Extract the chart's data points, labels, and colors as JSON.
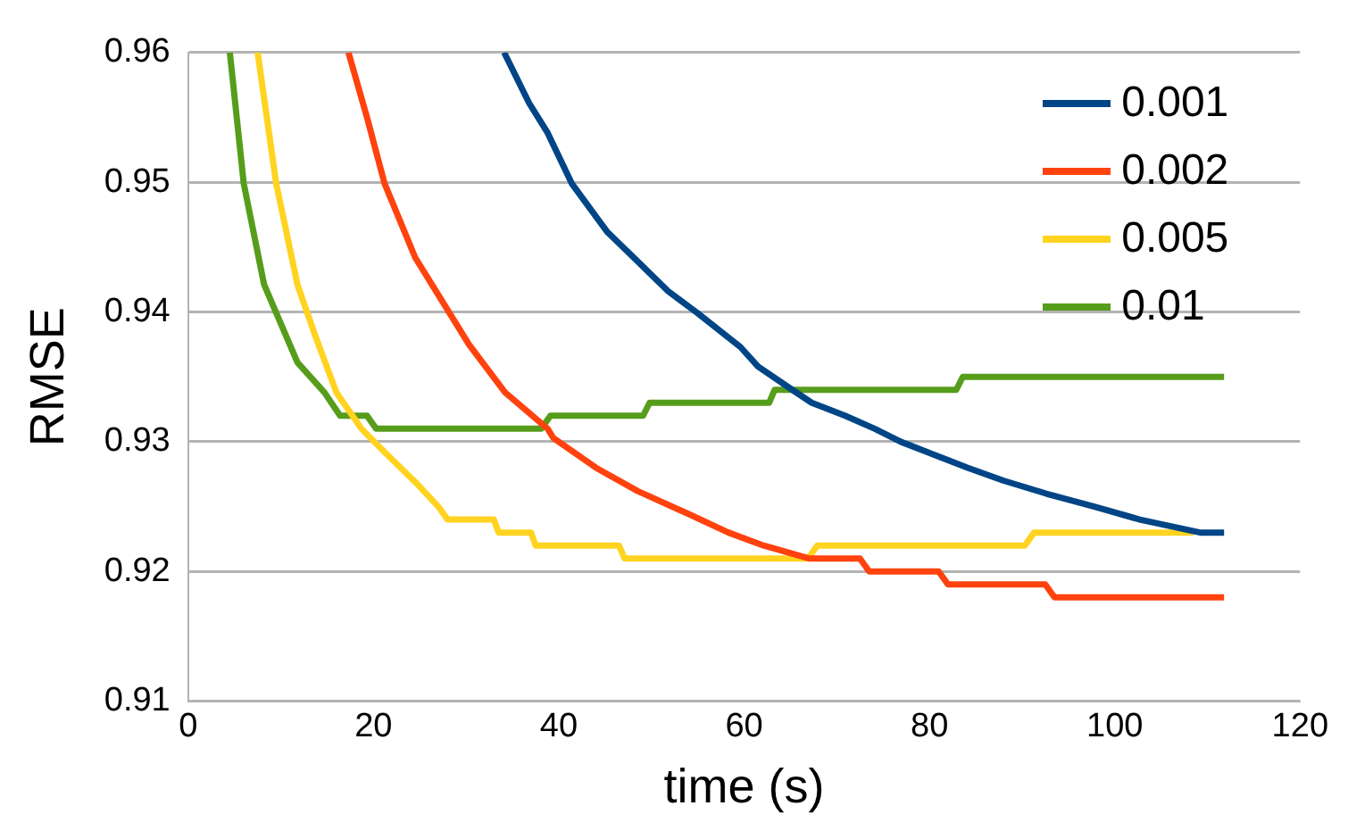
{
  "chart_data": {
    "type": "line",
    "xlabel": "time (s)",
    "ylabel": "RMSE",
    "xlim": [
      0,
      120
    ],
    "xticks": [
      0,
      20,
      40,
      60,
      80,
      100,
      120
    ],
    "ylim": [
      0.91,
      0.96
    ],
    "yticks": [
      0.91,
      0.92,
      0.93,
      0.94,
      0.95,
      0.96
    ],
    "grid": "y",
    "legend": "top right",
    "marker": "none",
    "line_style": "solid",
    "series": [
      {
        "name": "0.001",
        "color": "#004586",
        "x": [
          34.1,
          36.8,
          38.8,
          41.4,
          45.2,
          48.5,
          51.8,
          55,
          59.6,
          61.5,
          65.2,
          67.3,
          70.9,
          74.1,
          76.9,
          80.5,
          84.1,
          88,
          92.6,
          97.8,
          102.7,
          109.2,
          111.8
        ],
        "values": [
          0.96,
          0.9561,
          0.9538,
          0.9499,
          0.9462,
          0.9439,
          0.9416,
          0.9399,
          0.9373,
          0.9358,
          0.934,
          0.933,
          0.932,
          0.931,
          0.93,
          0.929,
          0.928,
          0.927,
          0.926,
          0.925,
          0.924,
          0.923,
          0.923
        ]
      },
      {
        "name": "0.002",
        "color": "#ff420e",
        "x": [
          17.3,
          19.3,
          21.2,
          24.5,
          27.1,
          30.3,
          34.2,
          38.8,
          39.4,
          44,
          48.5,
          54.4,
          58.3,
          62.1,
          67,
          72.5,
          73.5,
          81,
          82,
          92.5,
          93.5,
          111.8
        ],
        "values": [
          0.96,
          0.955,
          0.9499,
          0.9442,
          0.9412,
          0.9375,
          0.9338,
          0.931,
          0.9303,
          0.928,
          0.9262,
          0.9243,
          0.923,
          0.922,
          0.921,
          0.921,
          0.92,
          0.92,
          0.919,
          0.919,
          0.918,
          0.918
        ]
      },
      {
        "name": "0.005",
        "color": "#ffd320",
        "x": [
          7.5,
          9.5,
          11.8,
          13.8,
          16,
          18.7,
          21.2,
          24.5,
          27,
          28,
          33,
          33.5,
          37,
          37.5,
          46.5,
          47.1,
          66.9,
          67.9,
          90.3,
          91.3,
          108.5
        ],
        "values": [
          0.96,
          0.9499,
          0.9421,
          0.938,
          0.9338,
          0.931,
          0.9292,
          0.9269,
          0.925,
          0.924,
          0.924,
          0.923,
          0.923,
          0.922,
          0.922,
          0.921,
          0.921,
          0.922,
          0.922,
          0.923,
          0.923
        ]
      },
      {
        "name": "0.01",
        "color": "#579d1c",
        "x": [
          4.5,
          6,
          8.2,
          11.8,
          14.7,
          16.4,
          19.3,
          20.3,
          38.1,
          39.1,
          49.1,
          49.8,
          62.7,
          63.3,
          82.9,
          83.6,
          111.8
        ],
        "values": [
          0.96,
          0.9499,
          0.9421,
          0.9361,
          0.9338,
          0.932,
          0.932,
          0.931,
          0.931,
          0.932,
          0.932,
          0.933,
          0.933,
          0.934,
          0.934,
          0.935,
          0.935
        ]
      }
    ]
  }
}
